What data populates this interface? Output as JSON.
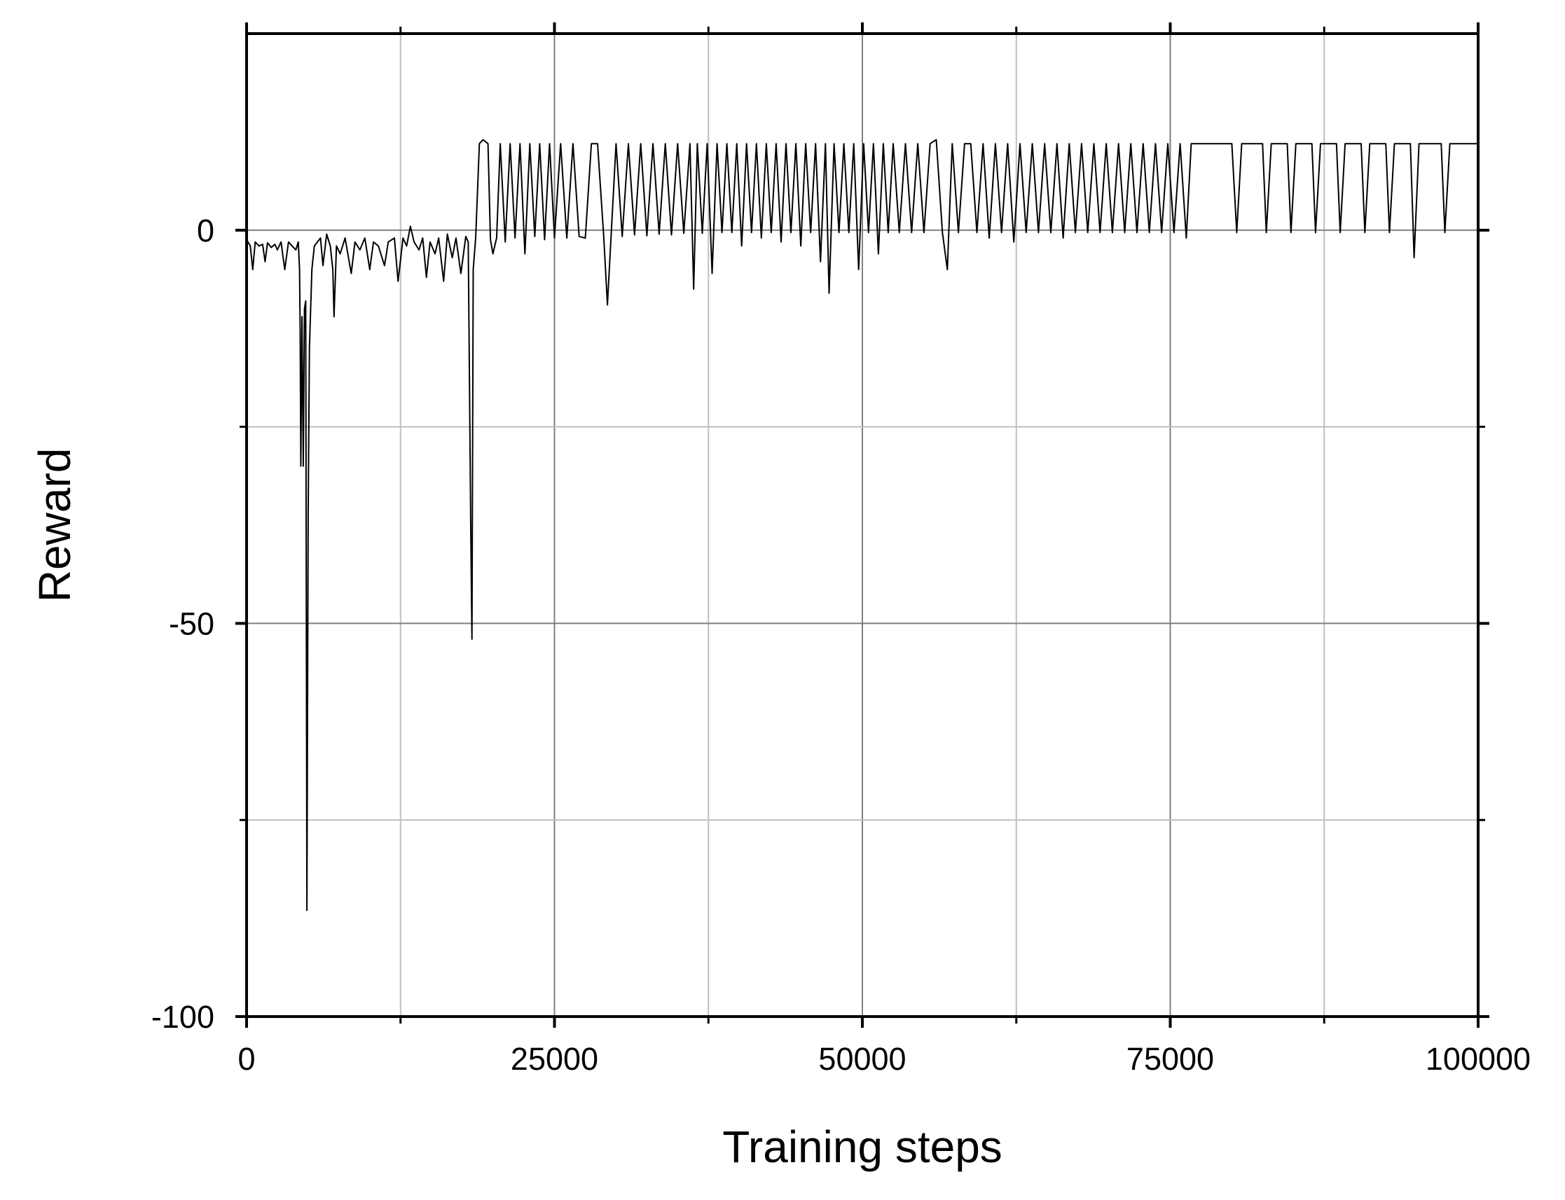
{
  "chart_data": {
    "type": "line",
    "title": "",
    "xlabel": "Training steps",
    "ylabel": "Reward",
    "xlim": [
      0,
      100000
    ],
    "ylim": [
      -100,
      25
    ],
    "x_ticks": [
      0,
      25000,
      50000,
      75000,
      100000
    ],
    "x_tick_labels": [
      "0",
      "25000",
      "50000",
      "75000",
      "100000"
    ],
    "x_minor_ticks": [
      12500,
      37500,
      62500,
      87500
    ],
    "y_ticks": [
      0,
      -50,
      -100
    ],
    "y_tick_labels": [
      "0",
      "-50",
      "-100"
    ],
    "y_minor_ticks": [
      -25,
      -75
    ],
    "grid": true,
    "legend": "none",
    "colors": {
      "line": "#000000",
      "grid_major": "#7f7f7f",
      "grid_minor": "#bfbfbf",
      "axes": "#000000"
    },
    "series": [
      {
        "values": [
          [
            0,
            -1.2
          ],
          [
            300,
            -2.0
          ],
          [
            500,
            -5.0
          ],
          [
            700,
            -1.5
          ],
          [
            1000,
            -2.0
          ],
          [
            1300,
            -1.8
          ],
          [
            1500,
            -4.0
          ],
          [
            1700,
            -1.6
          ],
          [
            2000,
            -2.2
          ],
          [
            2300,
            -1.8
          ],
          [
            2500,
            -2.5
          ],
          [
            2800,
            -1.5
          ],
          [
            3100,
            -5.0
          ],
          [
            3400,
            -1.5
          ],
          [
            3700,
            -2.0
          ],
          [
            4000,
            -2.5
          ],
          [
            4200,
            -1.5
          ],
          [
            4300,
            -5.0
          ],
          [
            4350,
            -13.0
          ],
          [
            4400,
            -30.0
          ],
          [
            4500,
            -11.0
          ],
          [
            4600,
            -30.0
          ],
          [
            4700,
            -10.0
          ],
          [
            4800,
            -9.0
          ],
          [
            4900,
            -86.5
          ],
          [
            5000,
            -36.0
          ],
          [
            5100,
            -15.0
          ],
          [
            5300,
            -5.0
          ],
          [
            5500,
            -2.0
          ],
          [
            6000,
            -1.0
          ],
          [
            6200,
            -4.5
          ],
          [
            6500,
            -0.5
          ],
          [
            6800,
            -2.0
          ],
          [
            7000,
            -5.0
          ],
          [
            7100,
            -11.0
          ],
          [
            7300,
            -2.0
          ],
          [
            7600,
            -3.0
          ],
          [
            8000,
            -1.0
          ],
          [
            8500,
            -5.5
          ],
          [
            8800,
            -1.5
          ],
          [
            9200,
            -2.5
          ],
          [
            9600,
            -1.0
          ],
          [
            10000,
            -5.0
          ],
          [
            10300,
            -1.5
          ],
          [
            10700,
            -2.0
          ],
          [
            11200,
            -4.5
          ],
          [
            11500,
            -1.5
          ],
          [
            12000,
            -1.0
          ],
          [
            12300,
            -6.5
          ],
          [
            12700,
            -1.0
          ],
          [
            13000,
            -2.0
          ],
          [
            13300,
            0.5
          ],
          [
            13600,
            -1.5
          ],
          [
            14000,
            -2.5
          ],
          [
            14300,
            -1.0
          ],
          [
            14600,
            -6.0
          ],
          [
            14900,
            -1.5
          ],
          [
            15300,
            -3.0
          ],
          [
            15600,
            -1.0
          ],
          [
            16000,
            -6.5
          ],
          [
            16300,
            -0.5
          ],
          [
            16700,
            -3.5
          ],
          [
            17000,
            -1.0
          ],
          [
            17400,
            -5.5
          ],
          [
            17800,
            -0.8
          ],
          [
            18000,
            -1.5
          ],
          [
            18200,
            -38.0
          ],
          [
            18300,
            -52.0
          ],
          [
            18400,
            -5.0
          ],
          [
            18600,
            -1.0
          ],
          [
            18900,
            11.0
          ],
          [
            19200,
            11.5
          ],
          [
            19600,
            11.0
          ],
          [
            19800,
            -1.2
          ],
          [
            20000,
            -3.0
          ],
          [
            20300,
            -1.0
          ],
          [
            20600,
            11.0
          ],
          [
            21000,
            -1.5
          ],
          [
            21400,
            11.0
          ],
          [
            21800,
            -1.0
          ],
          [
            22200,
            11.0
          ],
          [
            22600,
            -3.0
          ],
          [
            23000,
            11.0
          ],
          [
            23400,
            -0.8
          ],
          [
            23800,
            11.0
          ],
          [
            24200,
            -1.2
          ],
          [
            24600,
            11.0
          ],
          [
            25000,
            -1.0
          ],
          [
            25500,
            11.0
          ],
          [
            26000,
            -1.0
          ],
          [
            26500,
            11.0
          ],
          [
            27000,
            -0.8
          ],
          [
            27500,
            -1.0
          ],
          [
            28000,
            11.0
          ],
          [
            28500,
            11.0
          ],
          [
            29000,
            -0.8
          ],
          [
            29300,
            -9.5
          ],
          [
            29600,
            -0.6
          ],
          [
            30000,
            11.0
          ],
          [
            30500,
            -0.8
          ],
          [
            31000,
            11.0
          ],
          [
            31500,
            -0.6
          ],
          [
            32000,
            11.0
          ],
          [
            32500,
            -0.7
          ],
          [
            33000,
            11.0
          ],
          [
            33500,
            -0.5
          ],
          [
            34000,
            11.0
          ],
          [
            34500,
            -0.6
          ],
          [
            35000,
            11.0
          ],
          [
            35500,
            -0.4
          ],
          [
            36000,
            11.0
          ],
          [
            36300,
            -7.5
          ],
          [
            36600,
            11.0
          ],
          [
            37000,
            -0.4
          ],
          [
            37400,
            11.0
          ],
          [
            37800,
            -5.5
          ],
          [
            38200,
            11.0
          ],
          [
            38600,
            -0.3
          ],
          [
            39000,
            11.0
          ],
          [
            39400,
            -0.3
          ],
          [
            39800,
            11.0
          ],
          [
            40200,
            -2.0
          ],
          [
            40600,
            11.0
          ],
          [
            41000,
            -0.3
          ],
          [
            41400,
            11.0
          ],
          [
            41800,
            -1.0
          ],
          [
            42200,
            11.0
          ],
          [
            42600,
            -0.3
          ],
          [
            43000,
            11.0
          ],
          [
            43400,
            -1.5
          ],
          [
            43800,
            11.0
          ],
          [
            44200,
            -0.3
          ],
          [
            44600,
            11.0
          ],
          [
            45000,
            -2.0
          ],
          [
            45400,
            11.0
          ],
          [
            45800,
            -0.3
          ],
          [
            46200,
            11.0
          ],
          [
            46600,
            -4.0
          ],
          [
            47000,
            11.0
          ],
          [
            47300,
            -8.0
          ],
          [
            47700,
            11.0
          ],
          [
            48100,
            -0.3
          ],
          [
            48500,
            11.0
          ],
          [
            48900,
            -0.3
          ],
          [
            49300,
            11.0
          ],
          [
            49700,
            -5.0
          ],
          [
            50100,
            11.0
          ],
          [
            50500,
            -0.3
          ],
          [
            50900,
            11.0
          ],
          [
            51300,
            -3.0
          ],
          [
            51700,
            11.0
          ],
          [
            52100,
            -0.3
          ],
          [
            52500,
            11.0
          ],
          [
            53000,
            -0.3
          ],
          [
            53500,
            11.0
          ],
          [
            54000,
            -0.3
          ],
          [
            54500,
            11.0
          ],
          [
            55000,
            -0.3
          ],
          [
            55500,
            11.0
          ],
          [
            56000,
            11.5
          ],
          [
            56500,
            -0.3
          ],
          [
            56900,
            -5.0
          ],
          [
            57300,
            11.0
          ],
          [
            57800,
            -0.3
          ],
          [
            58300,
            11.0
          ],
          [
            58800,
            11.0
          ],
          [
            59300,
            -0.3
          ],
          [
            59800,
            11.0
          ],
          [
            60300,
            -1.0
          ],
          [
            60800,
            11.0
          ],
          [
            61300,
            -0.3
          ],
          [
            61800,
            11.0
          ],
          [
            62300,
            -1.5
          ],
          [
            62800,
            11.0
          ],
          [
            63300,
            -0.3
          ],
          [
            63800,
            11.0
          ],
          [
            64300,
            -0.3
          ],
          [
            64800,
            11.0
          ],
          [
            65300,
            -0.3
          ],
          [
            65800,
            11.0
          ],
          [
            66300,
            -1.0
          ],
          [
            66800,
            11.0
          ],
          [
            67300,
            -0.3
          ],
          [
            67800,
            11.0
          ],
          [
            68300,
            -0.3
          ],
          [
            68800,
            11.0
          ],
          [
            69300,
            -0.3
          ],
          [
            69800,
            11.0
          ],
          [
            70300,
            -0.3
          ],
          [
            70800,
            11.0
          ],
          [
            71300,
            -0.3
          ],
          [
            71800,
            11.0
          ],
          [
            72300,
            -0.3
          ],
          [
            72800,
            11.0
          ],
          [
            73300,
            -0.3
          ],
          [
            73800,
            11.0
          ],
          [
            74300,
            -0.3
          ],
          [
            74800,
            11.0
          ],
          [
            75300,
            -0.3
          ],
          [
            75800,
            11.0
          ],
          [
            76300,
            -1.0
          ],
          [
            76700,
            11.0
          ],
          [
            78000,
            11.0
          ],
          [
            80000,
            11.0
          ],
          [
            80400,
            -0.3
          ],
          [
            80800,
            11.0
          ],
          [
            82500,
            11.0
          ],
          [
            82800,
            -0.3
          ],
          [
            83200,
            11.0
          ],
          [
            84500,
            11.0
          ],
          [
            84800,
            -0.3
          ],
          [
            85200,
            11.0
          ],
          [
            86500,
            11.0
          ],
          [
            86800,
            -0.3
          ],
          [
            87200,
            11.0
          ],
          [
            88500,
            11.0
          ],
          [
            88800,
            -0.3
          ],
          [
            89200,
            11.0
          ],
          [
            90500,
            11.0
          ],
          [
            90800,
            -0.3
          ],
          [
            91200,
            11.0
          ],
          [
            92500,
            11.0
          ],
          [
            92800,
            -0.3
          ],
          [
            93200,
            11.0
          ],
          [
            94500,
            11.0
          ],
          [
            94800,
            -3.5
          ],
          [
            95200,
            11.0
          ],
          [
            97000,
            11.0
          ],
          [
            97300,
            -0.3
          ],
          [
            97700,
            11.0
          ],
          [
            99000,
            11.0
          ],
          [
            100000,
            11.0
          ]
        ]
      }
    ]
  }
}
